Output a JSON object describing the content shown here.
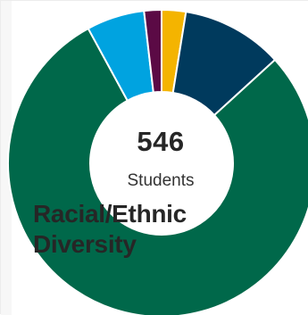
{
  "chart_data": {
    "type": "pie",
    "title": "Racial/Ethnic Diversity",
    "center_value": "546",
    "center_label": "Students",
    "slices": [
      {
        "value": 2.5,
        "color": "#f4b400"
      },
      {
        "value": 10.5,
        "color": "#003a5d"
      },
      {
        "value": 77.5,
        "color": "#00684a"
      },
      {
        "value": 6.0,
        "color": "#00a3e0"
      },
      {
        "value": 1.8,
        "color": "#5b0a45"
      }
    ]
  }
}
